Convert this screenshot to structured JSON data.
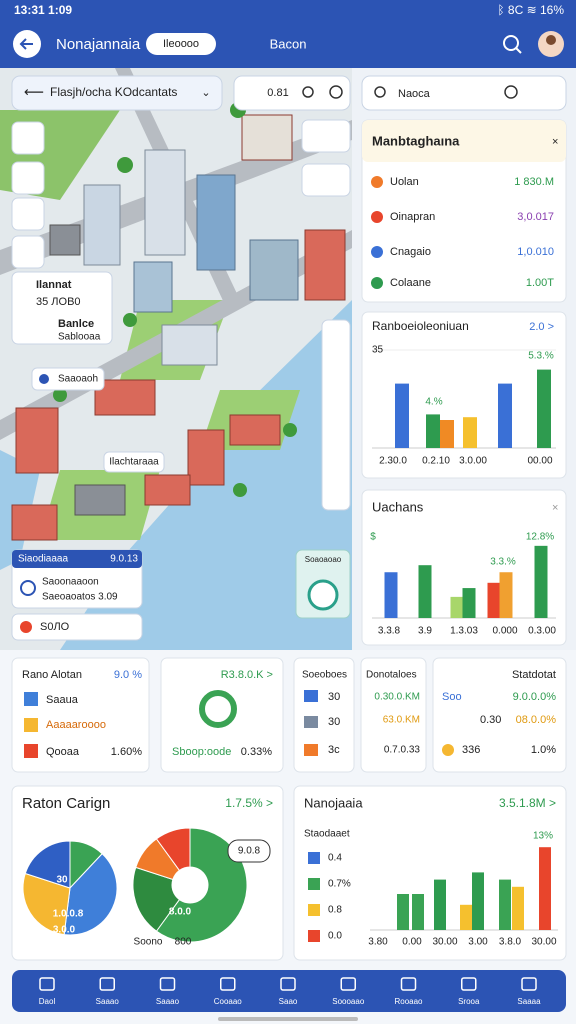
{
  "status_bar": {
    "time": "13:31 1:09",
    "icons": "ᛒ 8C ≋ 16%"
  },
  "header": {
    "title": "Nonajannaia",
    "pill": "Ileoooo",
    "tab": "Bacon"
  },
  "map": {
    "search": "Flasjh/ocha  KOdcantats",
    "zoom": "0.81",
    "poi": {
      "title": "Ilannat",
      "subtitle": "35 ЛОВ0",
      "title_2": "Banlce",
      "subtitle_2": "Sablooaa"
    },
    "labels": [
      "Saaoaoh",
      "Ilachtaraaa"
    ],
    "info_card": {
      "title": "Siaodiaaaa",
      "value": "9.0.13",
      "rows": [
        "Saoonaaoon",
        "Saeoaoatos 3.09"
      ]
    },
    "chip": "S0ЛО",
    "widget": "Soaoaoao"
  },
  "side": {
    "search": "Naoca",
    "list": {
      "title": "Manbtaghaına",
      "rows": [
        {
          "label": "Uolan",
          "value": "1 830.M"
        },
        {
          "label": "Oinapran",
          "value": "3,0.017"
        },
        {
          "label": "Cnagaio",
          "value": "1,0.010"
        },
        {
          "label": "Colaane",
          "value": "1.00T"
        }
      ]
    },
    "chart_1": {
      "type": "bar",
      "title": "Ranboeioleoniuan",
      "action": "2.0 >",
      "ylim": [
        0,
        35
      ],
      "yticks": [
        35
      ],
      "values": [
        23,
        12,
        10,
        11,
        23,
        28
      ],
      "colors": [
        "#3a70d6",
        "#2e9b4f",
        "#f08a24",
        "#f5c02e",
        "#3a70d6",
        "#2e9b4f"
      ],
      "x_labels": [
        "2.30.0",
        "0.2.10",
        "3.0.00",
        "00.00"
      ],
      "annotations": [
        "4.%",
        "5.3.%"
      ]
    },
    "chart_2": {
      "type": "bar",
      "title": "Uachans",
      "close": "×",
      "ylim": [
        0,
        25
      ],
      "values": [
        13,
        15,
        6,
        8.5,
        10,
        13,
        20.5
      ],
      "colors": [
        "#3a70d6",
        "#2e9b4f",
        "#a8d66a",
        "#2e9b4f",
        "#e8452c",
        "#f0a030",
        "#2e9b4f"
      ],
      "x_labels": [
        "3.3.8",
        "3.9",
        "1.3.03",
        "0.000",
        "0.3.00"
      ],
      "annotations": [
        "$",
        "3.3.%",
        "12.8%"
      ]
    }
  },
  "cards": [
    {
      "title": "Rano Alotan",
      "value": "9.0 %",
      "rows": [
        "Saaua",
        "Aaaaaroooo",
        "Qooaa"
      ],
      "row_value": "1.60%"
    },
    {
      "title": "R3.8.0.K >",
      "label": "Sboop:oode",
      "value": "0.33%"
    },
    {
      "title": "Soeoboes",
      "rows": [
        "30",
        "30",
        "3c"
      ]
    },
    {
      "title": "Donotaloes",
      "rows": [
        "0.30.0.KM",
        "63.0.KM",
        "0.7.0.33"
      ]
    },
    {
      "title": "Statdotat",
      "rows": [
        {
          "label": "Soo",
          "value": "9.0.0.0%"
        },
        {
          "label": "0.30",
          "value": "08.0.0%"
        },
        {
          "label": "336",
          "value": "1.0%"
        }
      ]
    }
  ],
  "bottom": {
    "pies": {
      "title": "Raton Carign",
      "action": "1.7.5% >",
      "pie_1": {
        "type": "pie",
        "values": [
          12,
          40,
          28,
          20
        ],
        "colors": [
          "#3aa354",
          "#3f7fd9",
          "#f5b731",
          "#2f5fc4"
        ],
        "labels": [
          "30",
          "1.0.0.8",
          "3.0.0"
        ]
      },
      "pie_2": {
        "type": "pie",
        "values": [
          60,
          20,
          10,
          10
        ],
        "colors": [
          "#3aa354",
          "#2e8b3f",
          "#f07a2a",
          "#e8452c"
        ],
        "labels": [
          "1.0.0.8",
          "8.0.0"
        ]
      },
      "bubble": "9.0.8",
      "legend": [
        "Soono",
        "800"
      ]
    },
    "bars": {
      "type": "bar",
      "title": "Nanojaaia",
      "action": "3.5.1.8M >",
      "legend_title": "Staodaaet",
      "legend": [
        "0.4",
        "0.7%",
        "0.8",
        "0.0"
      ],
      "legend_colors": [
        "#3a70d6",
        "#3aa354",
        "#f5c02e",
        "#e8452c"
      ],
      "ylim": [
        0,
        25
      ],
      "values": [
        10,
        10,
        14,
        7,
        16,
        14,
        12,
        23
      ],
      "colors": [
        "#3aa354",
        "#3aa354",
        "#2e9b4f",
        "#f5c02e",
        "#2e9b4f",
        "#3aa354",
        "#f5c02e",
        "#e8452c"
      ],
      "x_labels": [
        "3.80",
        "0.00",
        "30.00",
        "3.00",
        "3.8.0",
        "30.00"
      ],
      "annotations": [
        "13%"
      ]
    }
  },
  "nav": [
    "Daol",
    "Saaao",
    "Saaao",
    "Cooaao",
    "Saao",
    "Soooaao",
    "Rooaao",
    "Srooa",
    "Saaaa"
  ]
}
